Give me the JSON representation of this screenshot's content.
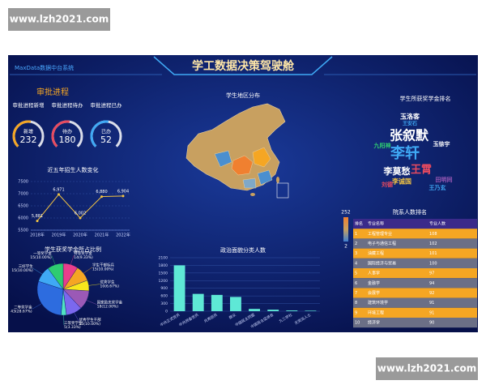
{
  "watermark": [
    "www.lzh2021.com",
    "www.lzh2021.com"
  ],
  "header": {
    "system": "MaxData数据中台系统",
    "title": "学工数据决策驾驶舱"
  },
  "approval": {
    "title": "审批进程",
    "labels": [
      "审批进程新增",
      "审批进程待办",
      "审批进程已办"
    ],
    "gauges": [
      {
        "label": "新增",
        "value": 232,
        "color": "#f5a623"
      },
      {
        "label": "待办",
        "value": 180,
        "color": "#e84a5f"
      },
      {
        "label": "已办",
        "value": 52,
        "color": "#3fa9f5"
      }
    ]
  },
  "chart_data": [
    {
      "type": "line",
      "title": "近五年招生人数变化",
      "categories": [
        "2018年",
        "2019年",
        "2020年",
        "2021年",
        "2022年"
      ],
      "values": [
        5881,
        6971,
        6002,
        6880,
        6904
      ],
      "value_labels": [
        "5,881",
        "6,971",
        "6,002",
        "6,880",
        "6,904"
      ],
      "color": "#f5c542",
      "ylim": [
        5500,
        7500
      ],
      "yticks": [
        5500,
        6000,
        6500,
        7000,
        7500
      ],
      "grid": true
    },
    {
      "type": "pie",
      "title": "学生获奖学金所占比例",
      "categories": [
        "特等奖学金",
        "学生干部标兵",
        "优秀学生",
        "国家励志奖学金",
        "优秀学生干部",
        "三等奖学金",
        "二等奖学金",
        "三好学生",
        "一等奖学金"
      ],
      "values": [
        14,
        15,
        10,
        18,
        15,
        5,
        43,
        15,
        15
      ],
      "value_labels": [
        "14(9.33%)",
        "15(10.00%)",
        "10(6.67%)",
        "18(12.00%)",
        "15(10.00%)",
        "5(3.33%)",
        "43(28.67%)",
        "15(10.00%)",
        "15(10.00%)"
      ],
      "colors": [
        "#e83e8c",
        "#f5a623",
        "#f8e71c",
        "#9b59b6",
        "#7b68ee",
        "#50e3c2",
        "#2d6cdf",
        "#3fa9f5",
        "#2ecc71"
      ]
    },
    {
      "type": "bar",
      "title": "政治面貌分类人数",
      "categories": [
        "中共正式党员",
        "中共预备党员",
        "共青团员",
        "群众",
        "中国民主同盟",
        "中国民主促进会",
        "九三学社",
        "无党派人士"
      ],
      "values": [
        1800,
        680,
        640,
        560,
        90,
        60,
        30,
        20
      ],
      "color": "#5ee8d6",
      "ylim": [
        0,
        2100
      ],
      "yticks": [
        0,
        300,
        600,
        900,
        1200,
        1500,
        1800,
        2100
      ],
      "grid": true
    }
  ],
  "map": {
    "title": "学生地区分布",
    "scale_max": 252,
    "scale_min": 2
  },
  "word_cloud": {
    "title": "学生所获奖学金排名",
    "words": [
      {
        "text": "张叙默",
        "color": "#ffffff"
      },
      {
        "text": "李轩",
        "color": "#3fa9f5"
      },
      {
        "text": "王霄",
        "color": "#e84a5f"
      },
      {
        "text": "李莫愁",
        "color": "#ffffff"
      },
      {
        "text": "玉洛客",
        "color": "#ffffff"
      },
      {
        "text": "玉徐宇",
        "color": "#ffffff"
      },
      {
        "text": "李诚国",
        "color": "#f5c542"
      },
      {
        "text": "田明同",
        "color": "#9b59b6"
      },
      {
        "text": "王乃玄",
        "color": "#3fa9f5"
      },
      {
        "text": "九阳神",
        "color": "#2ecc71"
      },
      {
        "text": "刘德",
        "color": "#e84a5f"
      },
      {
        "text": "王安石",
        "color": "#3fa9f5"
      }
    ]
  },
  "table": {
    "title": "院系人数排名",
    "columns": [
      "排名",
      "专业名称",
      "专业人数"
    ],
    "rows": [
      [
        1,
        "工程管理专业",
        108
      ],
      [
        2,
        "电子与通信工程",
        102
      ],
      [
        3,
        "油藏工程",
        101
      ],
      [
        4,
        "国际经济与贸易",
        100
      ],
      [
        5,
        "人事学",
        97
      ],
      [
        6,
        "金融学",
        94
      ],
      [
        7,
        "会展学",
        92
      ],
      [
        8,
        "建筑环境学",
        91
      ],
      [
        9,
        "环境工程",
        91
      ],
      [
        10,
        "经济学",
        90
      ]
    ]
  }
}
